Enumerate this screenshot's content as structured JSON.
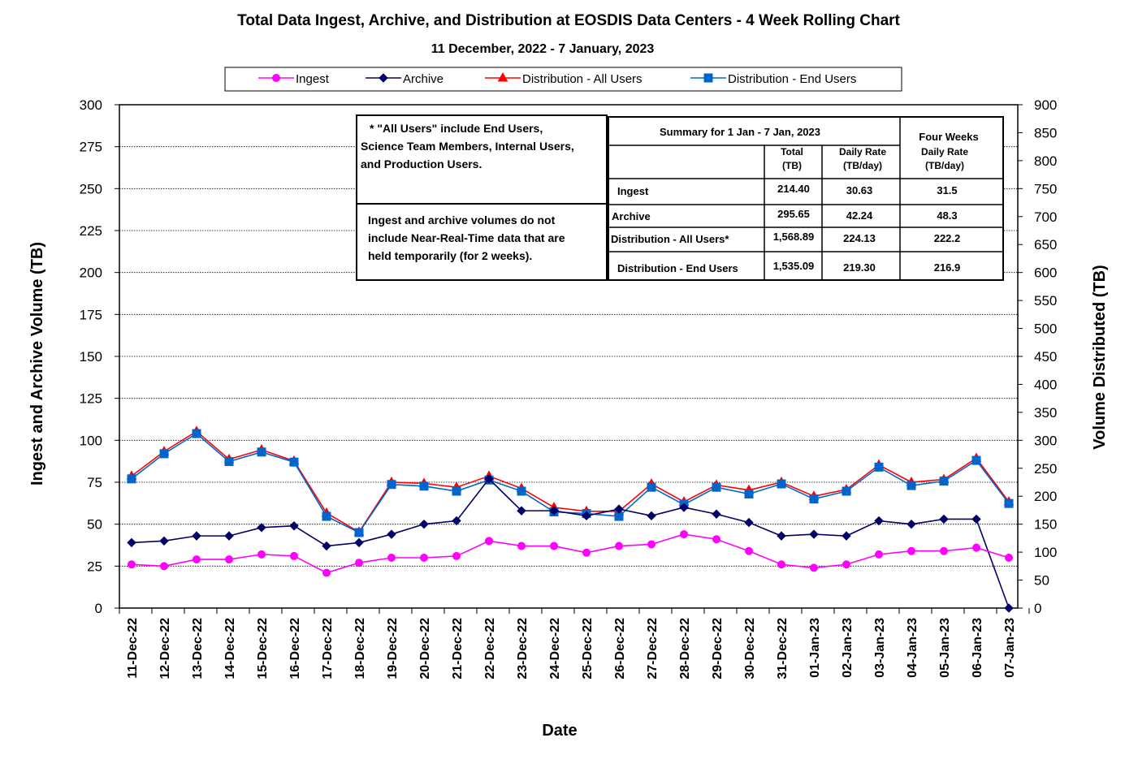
{
  "chart_data": {
    "type": "line",
    "title": "Total Data Ingest, Archive, and  Distribution at EOSDIS Data Centers - 4 Week Rolling Chart",
    "subtitle": "11  December,  2022  -  7  January, 2023",
    "xlabel": "Date",
    "ylabel": "Ingest and Archive Volume (TB)",
    "y2label": "Volume Distributed (TB)",
    "ylim": [
      0,
      300
    ],
    "y2lim": [
      0,
      900
    ],
    "yticks": [
      0,
      25,
      50,
      75,
      100,
      125,
      150,
      175,
      200,
      225,
      250,
      275,
      300
    ],
    "y2ticks": [
      0,
      50,
      100,
      150,
      200,
      250,
      300,
      350,
      400,
      450,
      500,
      550,
      600,
      650,
      700,
      750,
      800,
      850,
      900
    ],
    "grid": true,
    "legend_position": "top",
    "categories": [
      "11-Dec-22",
      "12-Dec-22",
      "13-Dec-22",
      "14-Dec-22",
      "15-Dec-22",
      "16-Dec-22",
      "17-Dec-22",
      "18-Dec-22",
      "19-Dec-22",
      "20-Dec-22",
      "21-Dec-22",
      "22-Dec-22",
      "23-Dec-22",
      "24-Dec-22",
      "25-Dec-22",
      "26-Dec-22",
      "27-Dec-22",
      "28-Dec-22",
      "29-Dec-22",
      "30-Dec-22",
      "31-Dec-22",
      "01-Jan-23",
      "02-Jan-23",
      "03-Jan-23",
      "04-Jan-23",
      "05-Jan-23",
      "06-Jan-23",
      "07-Jan-23"
    ],
    "series": [
      {
        "name": "Ingest",
        "axis": "left",
        "color": "#ff00ff",
        "marker": "circle",
        "values": [
          26,
          25,
          29,
          29,
          32,
          31,
          21,
          27,
          30,
          30,
          31,
          40,
          37,
          37,
          33,
          37,
          38,
          44,
          41,
          34,
          26,
          24,
          26,
          32,
          34,
          34,
          36,
          30
        ]
      },
      {
        "name": "Archive",
        "axis": "left",
        "color": "#000066",
        "marker": "diamond",
        "values": [
          39,
          40,
          43,
          43,
          48,
          49,
          37,
          39,
          44,
          50,
          52,
          77,
          58,
          58,
          55,
          59,
          55,
          60,
          56,
          51,
          43,
          44,
          43,
          52,
          50,
          53,
          53,
          0
        ]
      },
      {
        "name": "Distribution - All Users",
        "axis": "right",
        "color": "#ff0000",
        "marker": "triangle",
        "values": [
          236,
          280,
          316,
          266,
          283,
          263,
          170,
          136,
          225,
          223,
          216,
          236,
          214,
          180,
          173,
          173,
          222,
          190,
          220,
          211,
          225,
          200,
          212,
          256,
          225,
          230,
          268,
          190
        ]
      },
      {
        "name": "Distribution - End Users",
        "axis": "right",
        "color": "#0066cc",
        "marker": "square",
        "values": [
          231,
          276,
          312,
          262,
          279,
          261,
          164,
          135,
          221,
          218,
          209,
          229,
          209,
          172,
          169,
          164,
          216,
          185,
          216,
          204,
          222,
          195,
          209,
          252,
          219,
          227,
          264,
          187
        ]
      }
    ],
    "notes": [
      [
        "* \"All Users\" include End Users,",
        "Science Team Members,  Internal Users,",
        "and Production Users."
      ],
      [
        "Ingest and archive volumes do not",
        "include Near-Real-Time data that are",
        "held temporarily (for 2 weeks)."
      ]
    ],
    "summary_table": {
      "header": "Summary  for  1  Jan   -  7  Jan,  2023",
      "four_weeks_header": "Four Weeks",
      "col_total": [
        "Total",
        "(TB)"
      ],
      "col_daily": [
        "Daily Rate",
        "(TB/day)"
      ],
      "col_four": [
        "Daily Rate",
        "(TB/day)"
      ],
      "rows": [
        {
          "label": "Ingest",
          "total": "214.40",
          "daily": "30.63",
          "four": "31.5"
        },
        {
          "label": "Archive",
          "total": "295.65",
          "daily": "42.24",
          "four": "48.3"
        },
        {
          "label": "Distribution - All Users*",
          "total": "1,568.89",
          "daily": "224.13",
          "four": "222.2"
        },
        {
          "label": "Distribution - End Users",
          "total": "1,535.09",
          "daily": "219.30",
          "four": "216.9"
        }
      ]
    }
  }
}
